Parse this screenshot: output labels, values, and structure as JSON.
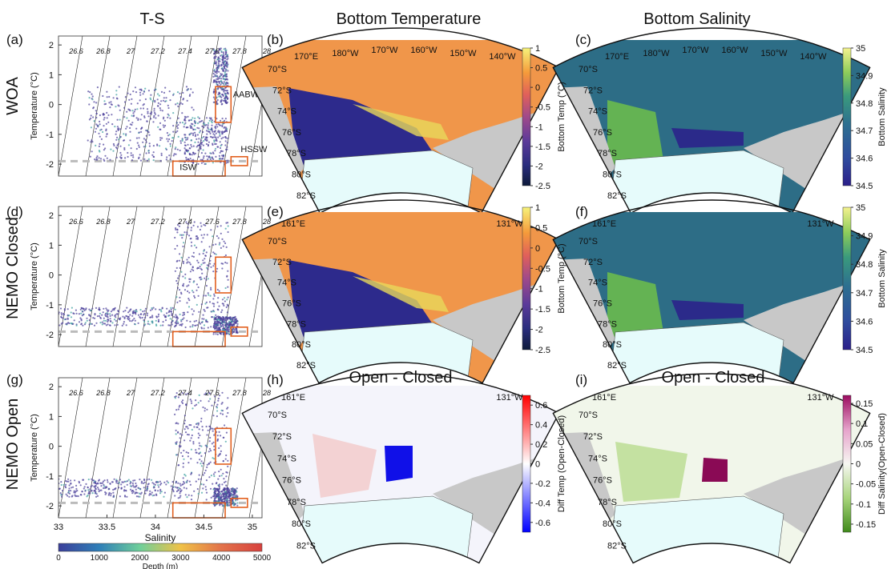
{
  "columns": {
    "ts": "T-S",
    "temp": "Bottom Temperature",
    "sal": "Bottom Salinity"
  },
  "rows": [
    {
      "label": "WOA"
    },
    {
      "label": "NEMO Closed"
    },
    {
      "label": "NEMO Open"
    }
  ],
  "panel_letters": [
    "(a)",
    "(b)",
    "(c)",
    "(d)",
    "(e)",
    "(f)",
    "(g)",
    "(h)",
    "(i)"
  ],
  "diff_title": "Open - Closed",
  "ts_axes": {
    "xlabel": "Salinity",
    "ylabel": "Temperature (°C)",
    "xticks": [
      "33",
      "33.5",
      "34",
      "34.5",
      "35"
    ],
    "yticks": [
      "2",
      "1",
      "0",
      "-1",
      "-2"
    ],
    "xlim": [
      33,
      35.1
    ],
    "ylim": [
      -2.4,
      2.3
    ],
    "isopycnals": [
      "26.6",
      "26.8",
      "27",
      "27.2",
      "27.4",
      "27.6",
      "27.8",
      "28"
    ],
    "boxes": [
      "AABW",
      "HSSW",
      "ISW"
    ],
    "freezing_line": -1.9,
    "depth_colorbar": {
      "label": "Depth (m)",
      "ticks": [
        "0",
        "1000",
        "2000",
        "3000",
        "4000",
        "5000"
      ],
      "range": [
        0,
        5000
      ]
    }
  },
  "map_labels": {
    "lat": [
      "70°S",
      "72°S",
      "74°S",
      "76°S",
      "78°S",
      "80°S",
      "82°S"
    ],
    "lon_woa": [
      "170°E",
      "180°W",
      "170°W",
      "160°W",
      "150°W",
      "140°W"
    ],
    "lon_nemo_left": "161°E",
    "lon_nemo_right": "131°W"
  },
  "colorbars": {
    "temp": {
      "label": "Bottom Temp (°C)",
      "ticks": [
        "1",
        "0.5",
        "0",
        "-0.5",
        "-1",
        "-1.5",
        "-2",
        "-2.5"
      ],
      "range": [
        -2.5,
        1
      ]
    },
    "sal": {
      "label": "Bottom Salinity",
      "ticks": [
        "35",
        "34.9",
        "34.8",
        "34.7",
        "34.6",
        "34.5"
      ],
      "range": [
        34.5,
        35
      ]
    },
    "dtemp": {
      "label": "Diff Temp (Open-Closed)",
      "ticks": [
        "0.6",
        "0.4",
        "0.2",
        "0",
        "-0.2",
        "-0.4",
        "-0.6"
      ],
      "range": [
        -0.7,
        0.7
      ]
    },
    "dsal": {
      "label": "Diff Salinity(Open-Closed)",
      "ticks": [
        "0.15",
        "0.1",
        "0.05",
        "0",
        "-0.05",
        "-0.1",
        "-0.15"
      ],
      "range": [
        -0.17,
        0.17
      ]
    }
  },
  "chart_data": [
    {
      "type": "scatter",
      "panel": "(a)",
      "dataset": "WOA",
      "xlabel": "Salinity",
      "ylabel": "Temperature (°C)",
      "xlim": [
        33,
        35.1
      ],
      "ylim": [
        -2.4,
        2.3
      ],
      "clusters": [
        {
          "s": [
            34.3,
            34.75
          ],
          "t": [
            -2.0,
            -0.4
          ]
        },
        {
          "s": [
            34.6,
            34.75
          ],
          "t": [
            0.0,
            1.9
          ]
        },
        {
          "s": [
            33.3,
            34.4
          ],
          "t": [
            -1.9,
            0.6
          ]
        }
      ]
    },
    {
      "type": "scatter",
      "panel": "(d)",
      "dataset": "NEMO Closed",
      "xlabel": "Salinity",
      "ylabel": "Temperature (°C)",
      "xlim": [
        33,
        35.1
      ],
      "ylim": [
        -2.4,
        2.3
      ],
      "clusters": [
        {
          "s": [
            33.0,
            34.3
          ],
          "t": [
            -1.7,
            -1.1
          ]
        },
        {
          "s": [
            34.2,
            34.75
          ],
          "t": [
            -1.8,
            1.8
          ]
        },
        {
          "s": [
            34.6,
            34.85
          ],
          "t": [
            -2.0,
            -1.4
          ]
        }
      ]
    },
    {
      "type": "scatter",
      "panel": "(g)",
      "dataset": "NEMO Open",
      "xlabel": "Salinity",
      "ylabel": "Temperature (°C)",
      "xlim": [
        33,
        35.1
      ],
      "ylim": [
        -2.4,
        2.3
      ],
      "clusters": [
        {
          "s": [
            33.0,
            34.3
          ],
          "t": [
            -1.7,
            -1.1
          ]
        },
        {
          "s": [
            34.2,
            34.75
          ],
          "t": [
            -1.8,
            1.8
          ]
        },
        {
          "s": [
            34.6,
            34.85
          ],
          "t": [
            -2.0,
            -1.4
          ]
        }
      ]
    },
    {
      "type": "heatmap",
      "panel": "(b)",
      "variable": "bottom temperature",
      "range": [
        -2.5,
        1
      ]
    },
    {
      "type": "heatmap",
      "panel": "(c)",
      "variable": "bottom salinity",
      "range": [
        34.5,
        35
      ]
    },
    {
      "type": "heatmap",
      "panel": "(e)",
      "variable": "bottom temperature",
      "range": [
        -2.5,
        1
      ]
    },
    {
      "type": "heatmap",
      "panel": "(f)",
      "variable": "bottom salinity",
      "range": [
        34.5,
        35
      ]
    },
    {
      "type": "heatmap",
      "panel": "(h)",
      "variable": "bottom temperature difference",
      "range": [
        -0.7,
        0.7
      ]
    },
    {
      "type": "heatmap",
      "panel": "(i)",
      "variable": "bottom salinity difference",
      "range": [
        -0.17,
        0.17
      ]
    }
  ],
  "colors": {
    "ts_scatter": "#4a3f9a",
    "box": "#e2601f",
    "land": "#c8c8c8",
    "ice_shelf": "#e6fbfb",
    "temp_ocean": "#f0964a",
    "temp_cold": "#2d2a8c",
    "sal_ocean": "#2d6d86",
    "sal_fresh_low": "#2b2a8a",
    "sal_high": "#6fbf4a"
  }
}
